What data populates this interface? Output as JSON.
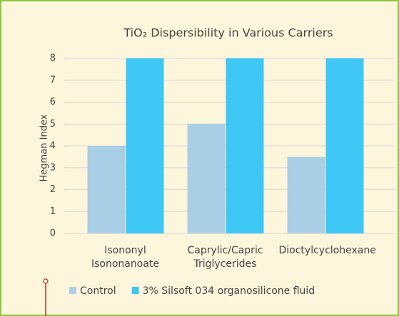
{
  "chart_data": {
    "type": "bar",
    "title": "TiO₂ Dispersibility in Various Carriers",
    "y_label": "Hegman Index",
    "categories": [
      "Isononyl Isononanoate",
      "Caprylic/Capric Triglycerides",
      "Dioctylcyclohexane"
    ],
    "series": [
      {
        "name": "Control",
        "color": "#a8cfe6",
        "values": [
          4,
          5,
          3.5
        ]
      },
      {
        "name": "3% Silsoft 034 organosilicone fluid",
        "color": "#3ec6f5",
        "values": [
          8,
          8,
          8
        ]
      }
    ],
    "ylim": [
      0,
      8
    ],
    "yticks": [
      0,
      1,
      2,
      3,
      4,
      5,
      6,
      7,
      8
    ],
    "grid": true,
    "legend": "bottom"
  }
}
